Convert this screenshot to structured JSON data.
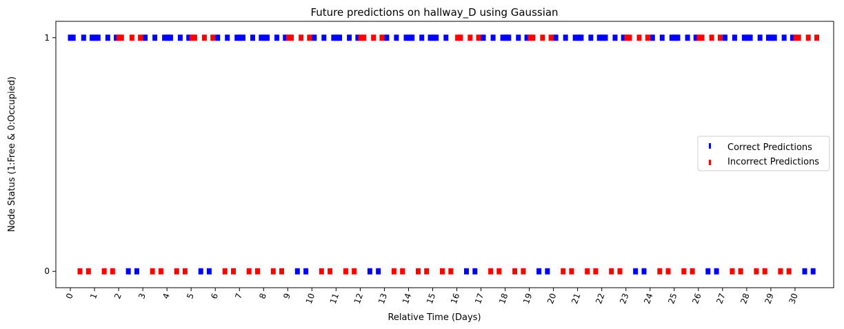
{
  "chart_data": {
    "type": "scatter",
    "title": "Future predictions on hallway_D using Gaussian",
    "xlabel": "Relative Time (Days)",
    "ylabel": "Node Status (1:Free & 0:Occupied)",
    "x_ticks": [
      "0",
      "1",
      "2",
      "3",
      "4",
      "5",
      "6",
      "7",
      "8",
      "9",
      "10",
      "11",
      "12",
      "13",
      "14",
      "15",
      "16",
      "17",
      "18",
      "19",
      "20",
      "21",
      "22",
      "23",
      "24",
      "25",
      "26",
      "27",
      "28",
      "29",
      "30"
    ],
    "y_ticks": [
      "0",
      "1"
    ],
    "xlim": [
      -0.6,
      31.6
    ],
    "ylim": [
      -0.07,
      1.07
    ],
    "marker": "vertical-bar",
    "legend_position": "center-right",
    "series": [
      {
        "name": "Correct Predictions",
        "color": "#0000ff",
        "points": [
          {
            "x": 0.0,
            "y": 1
          },
          {
            "x": 0.12,
            "y": 1
          },
          {
            "x": 0.55,
            "y": 1
          },
          {
            "x": 0.9,
            "y": 1
          },
          {
            "x": 1.03,
            "y": 1
          },
          {
            "x": 1.15,
            "y": 1
          },
          {
            "x": 1.55,
            "y": 1
          },
          {
            "x": 1.9,
            "y": 1
          },
          {
            "x": 3.1,
            "y": 1
          },
          {
            "x": 3.5,
            "y": 1
          },
          {
            "x": 3.9,
            "y": 1
          },
          {
            "x": 4.03,
            "y": 1
          },
          {
            "x": 4.15,
            "y": 1
          },
          {
            "x": 4.55,
            "y": 1
          },
          {
            "x": 4.9,
            "y": 1
          },
          {
            "x": 6.1,
            "y": 1
          },
          {
            "x": 6.5,
            "y": 1
          },
          {
            "x": 6.9,
            "y": 1
          },
          {
            "x": 7.03,
            "y": 1
          },
          {
            "x": 7.15,
            "y": 1
          },
          {
            "x": 7.55,
            "y": 1
          },
          {
            "x": 7.9,
            "y": 1
          },
          {
            "x": 8.03,
            "y": 1
          },
          {
            "x": 8.15,
            "y": 1
          },
          {
            "x": 8.55,
            "y": 1
          },
          {
            "x": 8.9,
            "y": 1
          },
          {
            "x": 10.1,
            "y": 1
          },
          {
            "x": 10.5,
            "y": 1
          },
          {
            "x": 10.9,
            "y": 1
          },
          {
            "x": 11.03,
            "y": 1
          },
          {
            "x": 11.15,
            "y": 1
          },
          {
            "x": 11.55,
            "y": 1
          },
          {
            "x": 11.9,
            "y": 1
          },
          {
            "x": 13.1,
            "y": 1
          },
          {
            "x": 13.5,
            "y": 1
          },
          {
            "x": 13.9,
            "y": 1
          },
          {
            "x": 14.03,
            "y": 1
          },
          {
            "x": 14.15,
            "y": 1
          },
          {
            "x": 14.55,
            "y": 1
          },
          {
            "x": 14.9,
            "y": 1
          },
          {
            "x": 15.03,
            "y": 1
          },
          {
            "x": 15.15,
            "y": 1
          },
          {
            "x": 15.55,
            "y": 1
          },
          {
            "x": 17.1,
            "y": 1
          },
          {
            "x": 17.5,
            "y": 1
          },
          {
            "x": 17.9,
            "y": 1
          },
          {
            "x": 18.03,
            "y": 1
          },
          {
            "x": 18.15,
            "y": 1
          },
          {
            "x": 18.55,
            "y": 1
          },
          {
            "x": 18.9,
            "y": 1
          },
          {
            "x": 20.1,
            "y": 1
          },
          {
            "x": 20.5,
            "y": 1
          },
          {
            "x": 20.9,
            "y": 1
          },
          {
            "x": 21.03,
            "y": 1
          },
          {
            "x": 21.15,
            "y": 1
          },
          {
            "x": 21.55,
            "y": 1
          },
          {
            "x": 21.9,
            "y": 1
          },
          {
            "x": 22.03,
            "y": 1
          },
          {
            "x": 22.15,
            "y": 1
          },
          {
            "x": 22.55,
            "y": 1
          },
          {
            "x": 22.9,
            "y": 1
          },
          {
            "x": 24.1,
            "y": 1
          },
          {
            "x": 24.5,
            "y": 1
          },
          {
            "x": 24.9,
            "y": 1
          },
          {
            "x": 25.03,
            "y": 1
          },
          {
            "x": 25.15,
            "y": 1
          },
          {
            "x": 25.55,
            "y": 1
          },
          {
            "x": 25.9,
            "y": 1
          },
          {
            "x": 27.1,
            "y": 1
          },
          {
            "x": 27.5,
            "y": 1
          },
          {
            "x": 27.9,
            "y": 1
          },
          {
            "x": 28.03,
            "y": 1
          },
          {
            "x": 28.15,
            "y": 1
          },
          {
            "x": 28.55,
            "y": 1
          },
          {
            "x": 28.9,
            "y": 1
          },
          {
            "x": 29.03,
            "y": 1
          },
          {
            "x": 29.15,
            "y": 1
          },
          {
            "x": 29.55,
            "y": 1
          },
          {
            "x": 29.9,
            "y": 1
          },
          {
            "x": 2.4,
            "y": 0
          },
          {
            "x": 2.75,
            "y": 0
          },
          {
            "x": 5.4,
            "y": 0
          },
          {
            "x": 5.75,
            "y": 0
          },
          {
            "x": 9.4,
            "y": 0
          },
          {
            "x": 9.75,
            "y": 0
          },
          {
            "x": 12.4,
            "y": 0
          },
          {
            "x": 12.75,
            "y": 0
          },
          {
            "x": 16.4,
            "y": 0
          },
          {
            "x": 16.75,
            "y": 0
          },
          {
            "x": 19.4,
            "y": 0
          },
          {
            "x": 19.75,
            "y": 0
          },
          {
            "x": 23.4,
            "y": 0
          },
          {
            "x": 23.75,
            "y": 0
          },
          {
            "x": 26.4,
            "y": 0
          },
          {
            "x": 26.75,
            "y": 0
          },
          {
            "x": 30.4,
            "y": 0
          },
          {
            "x": 30.75,
            "y": 0
          }
        ]
      },
      {
        "name": "Incorrect Predictions",
        "color": "#ff0000",
        "points": [
          {
            "x": 2.0,
            "y": 1
          },
          {
            "x": 2.12,
            "y": 1
          },
          {
            "x": 2.55,
            "y": 1
          },
          {
            "x": 2.9,
            "y": 1
          },
          {
            "x": 5.03,
            "y": 1
          },
          {
            "x": 5.15,
            "y": 1
          },
          {
            "x": 5.55,
            "y": 1
          },
          {
            "x": 5.9,
            "y": 1
          },
          {
            "x": 9.03,
            "y": 1
          },
          {
            "x": 9.15,
            "y": 1
          },
          {
            "x": 9.55,
            "y": 1
          },
          {
            "x": 9.9,
            "y": 1
          },
          {
            "x": 12.03,
            "y": 1
          },
          {
            "x": 12.15,
            "y": 1
          },
          {
            "x": 12.55,
            "y": 1
          },
          {
            "x": 12.9,
            "y": 1
          },
          {
            "x": 16.03,
            "y": 1
          },
          {
            "x": 16.15,
            "y": 1
          },
          {
            "x": 16.55,
            "y": 1
          },
          {
            "x": 16.9,
            "y": 1
          },
          {
            "x": 19.03,
            "y": 1
          },
          {
            "x": 19.15,
            "y": 1
          },
          {
            "x": 19.55,
            "y": 1
          },
          {
            "x": 19.9,
            "y": 1
          },
          {
            "x": 23.03,
            "y": 1
          },
          {
            "x": 23.15,
            "y": 1
          },
          {
            "x": 23.55,
            "y": 1
          },
          {
            "x": 23.9,
            "y": 1
          },
          {
            "x": 26.03,
            "y": 1
          },
          {
            "x": 26.15,
            "y": 1
          },
          {
            "x": 26.55,
            "y": 1
          },
          {
            "x": 26.9,
            "y": 1
          },
          {
            "x": 30.03,
            "y": 1
          },
          {
            "x": 30.15,
            "y": 1
          },
          {
            "x": 30.55,
            "y": 1
          },
          {
            "x": 30.9,
            "y": 1
          },
          {
            "x": 0.4,
            "y": 0
          },
          {
            "x": 0.75,
            "y": 0
          },
          {
            "x": 1.4,
            "y": 0
          },
          {
            "x": 1.75,
            "y": 0
          },
          {
            "x": 3.4,
            "y": 0
          },
          {
            "x": 3.75,
            "y": 0
          },
          {
            "x": 4.4,
            "y": 0
          },
          {
            "x": 4.75,
            "y": 0
          },
          {
            "x": 6.4,
            "y": 0
          },
          {
            "x": 6.75,
            "y": 0
          },
          {
            "x": 7.4,
            "y": 0
          },
          {
            "x": 7.75,
            "y": 0
          },
          {
            "x": 8.4,
            "y": 0
          },
          {
            "x": 8.75,
            "y": 0
          },
          {
            "x": 10.4,
            "y": 0
          },
          {
            "x": 10.75,
            "y": 0
          },
          {
            "x": 11.4,
            "y": 0
          },
          {
            "x": 11.75,
            "y": 0
          },
          {
            "x": 13.4,
            "y": 0
          },
          {
            "x": 13.75,
            "y": 0
          },
          {
            "x": 14.4,
            "y": 0
          },
          {
            "x": 14.75,
            "y": 0
          },
          {
            "x": 15.4,
            "y": 0
          },
          {
            "x": 15.75,
            "y": 0
          },
          {
            "x": 17.4,
            "y": 0
          },
          {
            "x": 17.75,
            "y": 0
          },
          {
            "x": 18.4,
            "y": 0
          },
          {
            "x": 18.75,
            "y": 0
          },
          {
            "x": 20.4,
            "y": 0
          },
          {
            "x": 20.75,
            "y": 0
          },
          {
            "x": 21.4,
            "y": 0
          },
          {
            "x": 21.75,
            "y": 0
          },
          {
            "x": 22.4,
            "y": 0
          },
          {
            "x": 22.75,
            "y": 0
          },
          {
            "x": 24.4,
            "y": 0
          },
          {
            "x": 24.75,
            "y": 0
          },
          {
            "x": 25.4,
            "y": 0
          },
          {
            "x": 25.75,
            "y": 0
          },
          {
            "x": 27.4,
            "y": 0
          },
          {
            "x": 27.75,
            "y": 0
          },
          {
            "x": 28.4,
            "y": 0
          },
          {
            "x": 28.75,
            "y": 0
          },
          {
            "x": 29.4,
            "y": 0
          },
          {
            "x": 29.75,
            "y": 0
          }
        ]
      }
    ]
  }
}
